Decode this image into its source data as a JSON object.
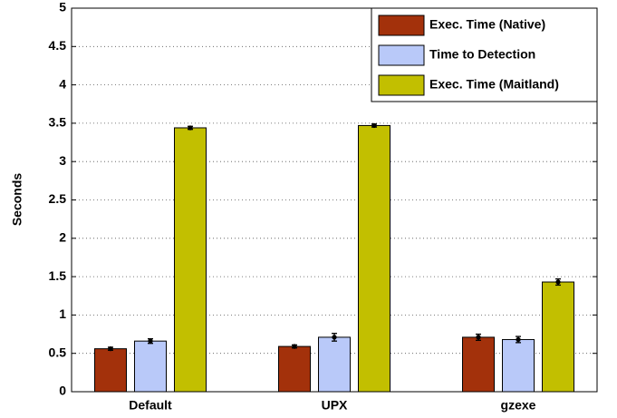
{
  "chart_data": {
    "type": "bar",
    "ylabel": "Seconds",
    "categories": [
      "Default",
      "UPX",
      "gzexe"
    ],
    "series": [
      {
        "name": "Exec. Time (Native)",
        "color": "#a3310b",
        "values": [
          0.56,
          0.59,
          0.71
        ],
        "errors": [
          0.02,
          0.02,
          0.04
        ]
      },
      {
        "name": "Time to Detection",
        "color": "#b9c9f9",
        "values": [
          0.66,
          0.71,
          0.68
        ],
        "errors": [
          0.03,
          0.05,
          0.04
        ]
      },
      {
        "name": "Exec. Time (Maitland)",
        "color": "#c2bf00",
        "values": [
          3.44,
          3.47,
          1.43
        ],
        "errors": [
          0.02,
          0.02,
          0.04
        ]
      }
    ],
    "ylim": [
      0,
      5
    ],
    "yticks": [
      0,
      0.5,
      1,
      1.5,
      2,
      2.5,
      3,
      3.5,
      4,
      4.5,
      5
    ],
    "grid": true,
    "legend": "upper right"
  }
}
